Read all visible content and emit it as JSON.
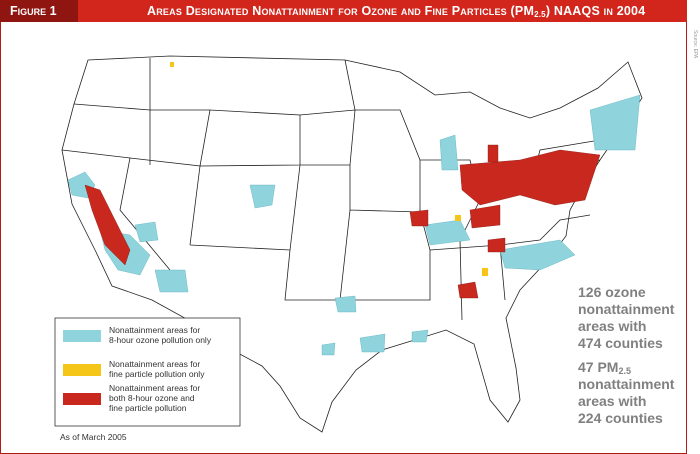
{
  "header": {
    "label": "Figure 1",
    "title_main": "Areas Designated Nonattainment for Ozone and Fine Particles (PM",
    "title_sub": "2.5",
    "title_end": ") NAAQS in 2004"
  },
  "legend": {
    "items": [
      {
        "lines": [
          "Nonattainment areas for",
          "8-hour ozone pollution only"
        ]
      },
      {
        "lines": [
          "Nonattainment areas for",
          "fine particle pollution only"
        ]
      },
      {
        "lines": [
          "Nonattainment areas for",
          "both 8-hour ozone and",
          "fine particle pollution"
        ]
      }
    ]
  },
  "stats": {
    "ozone": [
      "126 ozone",
      "nonattainment",
      "areas with",
      "474 counties"
    ],
    "pm": {
      "lead": "47 PM",
      "sub": "2.5",
      "lines": [
        "nonattainment",
        "areas with",
        "224 counties"
      ]
    }
  },
  "note": "As of March 2005",
  "source": "Source: EPA"
}
